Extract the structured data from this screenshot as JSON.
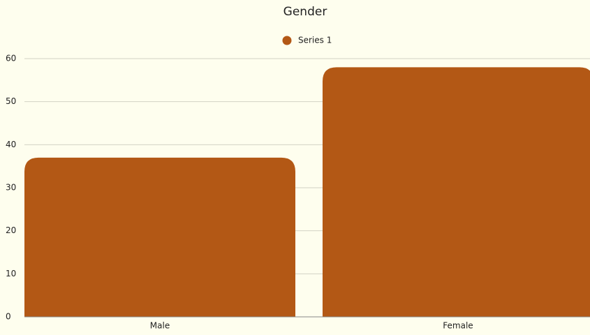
{
  "chart_data": {
    "type": "bar",
    "title": "Gender",
    "categories": [
      "Male",
      "Female"
    ],
    "series": [
      {
        "name": "Series 1",
        "color": "#b35815",
        "values": [
          37,
          58
        ]
      }
    ],
    "ylim": [
      0,
      60
    ],
    "yticks": [
      0,
      10,
      20,
      30,
      40,
      50,
      60
    ],
    "grid": true,
    "legend": "top"
  }
}
